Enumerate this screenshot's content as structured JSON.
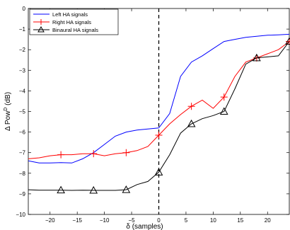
{
  "chart_data": {
    "type": "line",
    "title": "",
    "xlabel": "δ (samples)",
    "ylabel": "Δ Pow",
    "ylabel_sup": "D",
    "ylabel_unit": " (dB)",
    "xlim": [
      -24,
      24
    ],
    "ylim": [
      -10,
      0
    ],
    "xticks": [
      -20,
      -15,
      -10,
      -5,
      0,
      5,
      10,
      15,
      20
    ],
    "yticks": [
      0,
      -1,
      -2,
      -3,
      -4,
      -5,
      -6,
      -7,
      -8,
      -9,
      -10
    ],
    "grid": false,
    "legend_position": "top-left",
    "reference_line": {
      "x": 0,
      "style": "dashed"
    },
    "series": [
      {
        "name": "Left HA signals",
        "color": "#0000ff",
        "marker": "none",
        "x": [
          -24,
          -22,
          -20,
          -18,
          -16,
          -14,
          -12,
          -10,
          -8,
          -6,
          -4,
          -2,
          0,
          2,
          4,
          6,
          8,
          10,
          12,
          14,
          16,
          18,
          20,
          22,
          24
        ],
        "y": [
          -7.4,
          -7.5,
          -7.5,
          -7.48,
          -7.5,
          -7.3,
          -7.0,
          -6.6,
          -6.2,
          -6.0,
          -5.9,
          -5.85,
          -5.8,
          -5.1,
          -3.3,
          -2.6,
          -2.3,
          -1.95,
          -1.6,
          -1.5,
          -1.4,
          -1.35,
          -1.3,
          -1.28,
          -1.25
        ]
      },
      {
        "name": "Right HA signals",
        "color": "#ff0000",
        "marker": "plus",
        "x": [
          -24,
          -22,
          -20,
          -18,
          -16,
          -14,
          -12,
          -10,
          -8,
          -6,
          -4,
          -2,
          0,
          2,
          4,
          6,
          8,
          10,
          12,
          14,
          16,
          18,
          20,
          22,
          24
        ],
        "y": [
          -7.3,
          -7.25,
          -7.15,
          -7.1,
          -7.1,
          -7.05,
          -7.05,
          -7.15,
          -7.05,
          -7.0,
          -6.9,
          -6.7,
          -6.15,
          -5.6,
          -5.15,
          -4.75,
          -4.45,
          -4.85,
          -4.3,
          -3.3,
          -2.6,
          -2.4,
          -2.2,
          -2.0,
          -1.6
        ],
        "marker_x": [
          -18,
          -12,
          -6,
          0,
          6,
          12,
          18,
          24
        ]
      },
      {
        "name": "Binaural HA signals",
        "color": "#000000",
        "marker": "triangle",
        "x": [
          -24,
          -22,
          -20,
          -18,
          -16,
          -14,
          -12,
          -10,
          -8,
          -6,
          -4,
          -2,
          0,
          2,
          4,
          6,
          8,
          10,
          12,
          14,
          16,
          18,
          20,
          22,
          24
        ],
        "y": [
          -8.8,
          -8.82,
          -8.82,
          -8.82,
          -8.83,
          -8.82,
          -8.83,
          -8.83,
          -8.83,
          -8.8,
          -8.55,
          -8.4,
          -7.95,
          -7.1,
          -6.05,
          -5.6,
          -5.35,
          -5.2,
          -5.0,
          -3.9,
          -2.7,
          -2.4,
          -2.35,
          -2.3,
          -1.6
        ],
        "marker_x": [
          -18,
          -12,
          -6,
          0,
          6,
          12,
          18,
          24
        ]
      }
    ]
  }
}
